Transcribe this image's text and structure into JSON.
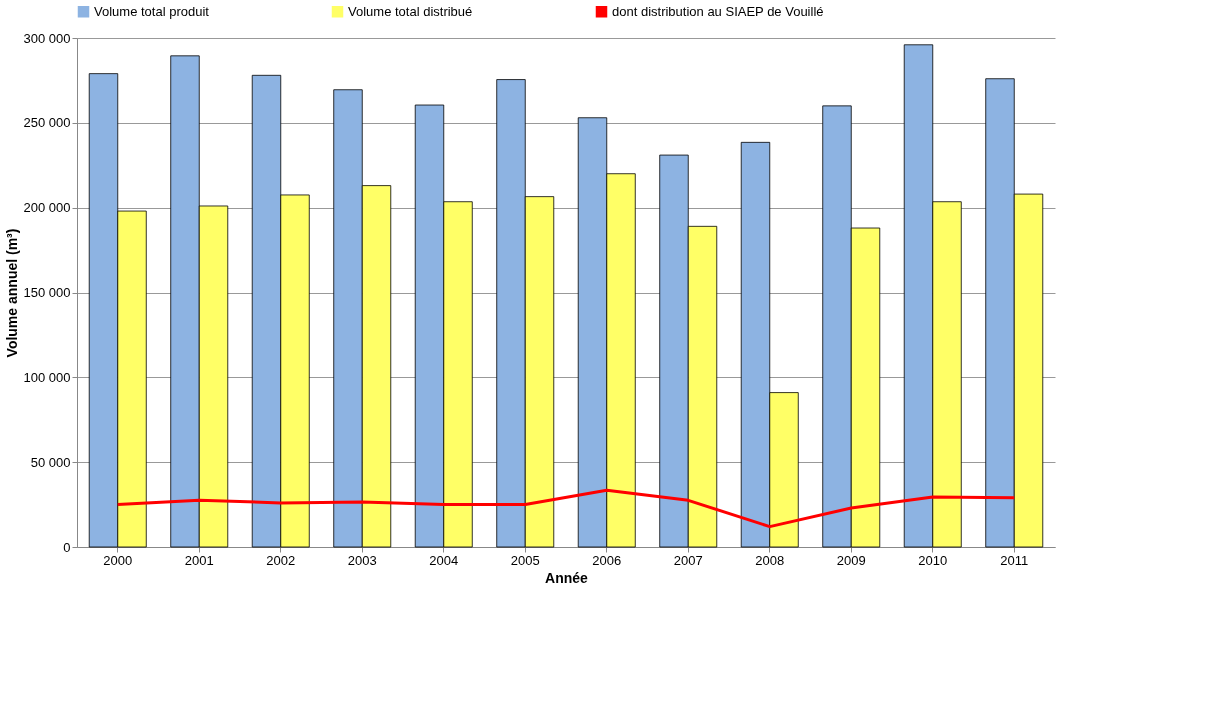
{
  "chart_data": {
    "type": "bar",
    "xlabel": "Année",
    "ylabel": "Volume annuel (m³)",
    "categories": [
      "2000",
      "2001",
      "2002",
      "2003",
      "2004",
      "2005",
      "2006",
      "2007",
      "2008",
      "2009",
      "2010",
      "2011"
    ],
    "series": [
      {
        "name": "Volume total produit",
        "color": "#8db3e2",
        "values": [
          279000,
          289500,
          278000,
          269500,
          260500,
          275500,
          253000,
          231000,
          238500,
          260000,
          296000,
          276000
        ]
      },
      {
        "name": "Volume total distribué",
        "color": "#ffff66",
        "values": [
          198000,
          201000,
          207500,
          213000,
          203500,
          206500,
          220000,
          189000,
          91000,
          188000,
          203500,
          208000
        ]
      },
      {
        "name": "dont distribution au SIAEP de Vouillé",
        "color": "#ff0000",
        "type": "line",
        "values": [
          25000,
          27500,
          26000,
          26500,
          25000,
          25000,
          33500,
          27500,
          12000,
          23000,
          29500,
          29000
        ]
      }
    ],
    "ylim": [
      0,
      300000
    ],
    "yticks": [
      {
        "value": 0,
        "label": "0"
      },
      {
        "value": 50000,
        "label": "50 000"
      },
      {
        "value": 100000,
        "label": "100 000"
      },
      {
        "value": 150000,
        "label": "150 000"
      },
      {
        "value": 200000,
        "label": "200 000"
      },
      {
        "value": 250000,
        "label": "250 000"
      },
      {
        "value": 300000,
        "label": "300 000"
      }
    ],
    "grid": "y",
    "legend": "top"
  }
}
